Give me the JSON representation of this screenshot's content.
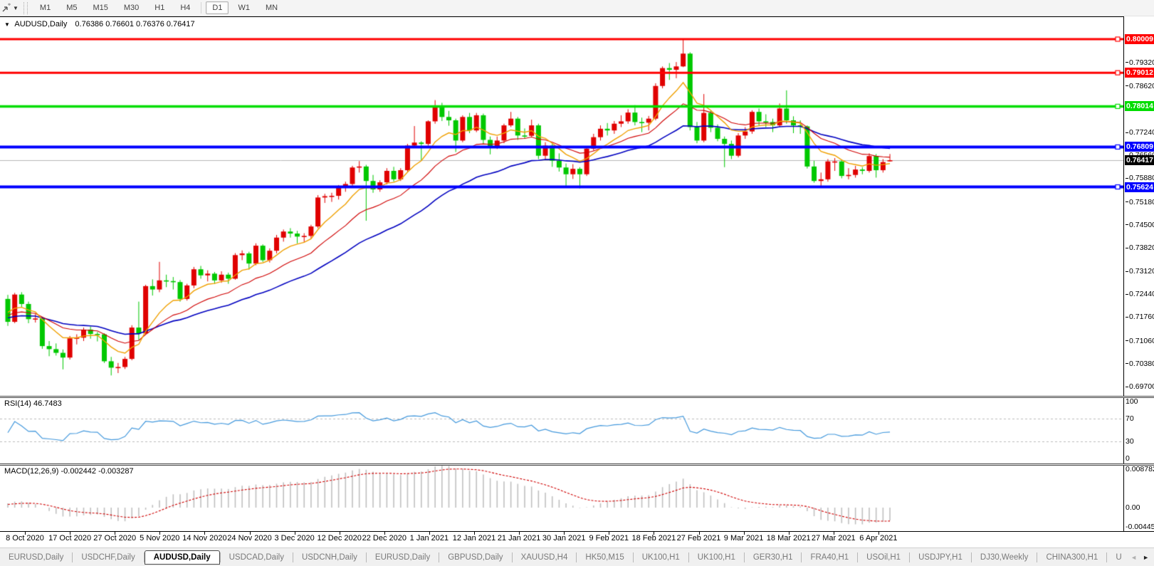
{
  "toolbar": {
    "chart_icon": "chart-cursor-icon",
    "timeframes": [
      "M1",
      "M5",
      "M15",
      "M30",
      "H1",
      "H4",
      "D1",
      "W1",
      "MN"
    ],
    "active_timeframe": "D1"
  },
  "chart_title": {
    "symbol": "AUDUSD,Daily",
    "ohlc": "0.76386 0.76601 0.76376 0.76417"
  },
  "rsi_label": {
    "name": "RSI(14)",
    "value": "46.7483"
  },
  "macd_label": {
    "name": "MACD(12,26,9)",
    "value": "-0.002442 -0.003287"
  },
  "colors": {
    "candle_up": "#e00000",
    "candle_down": "#00c800",
    "ma_fast": "#f0a000",
    "ma_mid": "#d00000",
    "ma_slow": "#0000c0",
    "level_red": "#ff0000",
    "level_green": "#00dd00",
    "level_blue": "#0000ff",
    "current_price_line": "#b8b8b8",
    "current_price_badge": "#000000",
    "rsi_line": "#4499dd",
    "rsi_level_dash": "#bbbbbb",
    "macd_bar": "#c0c0c0",
    "macd_signal": "#d00000"
  },
  "chart_data": {
    "type": "candlestick",
    "symbol": "AUDUSD",
    "timeframe": "Daily",
    "current_bar": {
      "open": 0.76386,
      "high": 0.76601,
      "low": 0.76376,
      "close": 0.76417
    },
    "y_ticks": [
      "0.79320",
      "0.78620",
      "0.77940",
      "0.77240",
      "0.76560",
      "0.75880",
      "0.75180",
      "0.74500",
      "0.73820",
      "0.73120",
      "0.72440",
      "0.71760",
      "0.71060",
      "0.70380",
      "0.69700"
    ],
    "levels": [
      {
        "label": "0.80009",
        "price": 0.80009,
        "color": "#ff0000",
        "width": 3
      },
      {
        "label": "0.79012",
        "price": 0.79012,
        "color": "#ff0000",
        "width": 3
      },
      {
        "label": "0.78014",
        "price": 0.78014,
        "color": "#00dd00",
        "width": 3.5
      },
      {
        "label": "0.76809",
        "price": 0.76809,
        "color": "#0000ff",
        "width": 4
      },
      {
        "label": "0.75624",
        "price": 0.75624,
        "color": "#0000ff",
        "width": 4
      }
    ],
    "current_price": {
      "label": "0.76417",
      "price": 0.76417
    },
    "x_labels": [
      "8 Oct 2020",
      "17 Oct 2020",
      "27 Oct 2020",
      "5 Nov 2020",
      "14 Nov 2020",
      "24 Nov 2020",
      "3 Dec 2020",
      "12 Dec 2020",
      "22 Dec 2020",
      "1 Jan 2021",
      "12 Jan 2021",
      "21 Jan 2021",
      "30 Jan 2021",
      "9 Feb 2021",
      "18 Feb 2021",
      "27 Feb 2021",
      "9 Mar 2021",
      "18 Mar 2021",
      "27 Mar 2021",
      "6 Apr 2021"
    ],
    "candles": [
      [
        0.723,
        0.7242,
        0.715,
        0.7162
      ],
      [
        0.7162,
        0.7248,
        0.7158,
        0.7243
      ],
      [
        0.7243,
        0.725,
        0.7205,
        0.7215
      ],
      [
        0.7215,
        0.7222,
        0.7158,
        0.717
      ],
      [
        0.717,
        0.7185,
        0.716,
        0.7172
      ],
      [
        0.7172,
        0.7176,
        0.7082,
        0.709
      ],
      [
        0.709,
        0.7105,
        0.706,
        0.7081
      ],
      [
        0.7081,
        0.7098,
        0.7062,
        0.707
      ],
      [
        0.707,
        0.708,
        0.7021,
        0.7056
      ],
      [
        0.7056,
        0.712,
        0.705,
        0.7113
      ],
      [
        0.7113,
        0.7125,
        0.7095,
        0.7115
      ],
      [
        0.7115,
        0.7145,
        0.7105,
        0.7139
      ],
      [
        0.7139,
        0.7148,
        0.7112,
        0.7126
      ],
      [
        0.7126,
        0.7132,
        0.7104,
        0.7125
      ],
      [
        0.7125,
        0.7128,
        0.704,
        0.7045
      ],
      [
        0.7045,
        0.7058,
        0.7003,
        0.7026
      ],
      [
        0.7026,
        0.704,
        0.701,
        0.7028
      ],
      [
        0.7028,
        0.7058,
        0.7022,
        0.7052
      ],
      [
        0.7052,
        0.7152,
        0.7048,
        0.7145
      ],
      [
        0.7145,
        0.7222,
        0.7108,
        0.7128
      ],
      [
        0.7128,
        0.7272,
        0.7125,
        0.7268
      ],
      [
        0.7268,
        0.7288,
        0.724,
        0.7258
      ],
      [
        0.7258,
        0.734,
        0.725,
        0.7285
      ],
      [
        0.7285,
        0.7302,
        0.7265,
        0.7283
      ],
      [
        0.7283,
        0.7295,
        0.7258,
        0.728
      ],
      [
        0.728,
        0.7286,
        0.7222,
        0.723
      ],
      [
        0.723,
        0.7275,
        0.7225,
        0.727
      ],
      [
        0.727,
        0.7325,
        0.7262,
        0.7318
      ],
      [
        0.7318,
        0.7328,
        0.729,
        0.73
      ],
      [
        0.73,
        0.7315,
        0.7282,
        0.7305
      ],
      [
        0.7305,
        0.731,
        0.7275,
        0.7285
      ],
      [
        0.7285,
        0.7312,
        0.7278,
        0.7302
      ],
      [
        0.7302,
        0.7308,
        0.7275,
        0.729
      ],
      [
        0.729,
        0.7366,
        0.7287,
        0.736
      ],
      [
        0.736,
        0.7374,
        0.7345,
        0.7365
      ],
      [
        0.7365,
        0.737,
        0.7317,
        0.7335
      ],
      [
        0.7335,
        0.7395,
        0.733,
        0.7388
      ],
      [
        0.7388,
        0.7392,
        0.734,
        0.7345
      ],
      [
        0.7345,
        0.738,
        0.7338,
        0.7373
      ],
      [
        0.7373,
        0.742,
        0.7365,
        0.7412
      ],
      [
        0.7412,
        0.7436,
        0.74,
        0.743
      ],
      [
        0.743,
        0.744,
        0.7412,
        0.7424
      ],
      [
        0.7424,
        0.7432,
        0.7395,
        0.7415
      ],
      [
        0.7415,
        0.7425,
        0.7398,
        0.7417
      ],
      [
        0.7417,
        0.745,
        0.741,
        0.7445
      ],
      [
        0.7445,
        0.7538,
        0.744,
        0.7531
      ],
      [
        0.7531,
        0.7542,
        0.7515,
        0.7535
      ],
      [
        0.7535,
        0.7545,
        0.7518,
        0.7536
      ],
      [
        0.7536,
        0.7568,
        0.7525,
        0.7561
      ],
      [
        0.7561,
        0.7578,
        0.7548,
        0.7571
      ],
      [
        0.7571,
        0.7625,
        0.7565,
        0.762
      ],
      [
        0.762,
        0.7639,
        0.7605,
        0.7623
      ],
      [
        0.7623,
        0.7628,
        0.7462,
        0.758
      ],
      [
        0.758,
        0.7598,
        0.7545,
        0.7555
      ],
      [
        0.7555,
        0.7582,
        0.7548,
        0.7576
      ],
      [
        0.7576,
        0.7618,
        0.757,
        0.761
      ],
      [
        0.761,
        0.7622,
        0.7578,
        0.7585
      ],
      [
        0.7585,
        0.7618,
        0.758,
        0.7612
      ],
      [
        0.7612,
        0.769,
        0.7608,
        0.7685
      ],
      [
        0.7685,
        0.7743,
        0.768,
        0.7694
      ],
      [
        0.7694,
        0.7698,
        0.7642,
        0.769
      ],
      [
        0.769,
        0.776,
        0.7685,
        0.7757
      ],
      [
        0.7757,
        0.782,
        0.775,
        0.78
      ],
      [
        0.78,
        0.7812,
        0.7758,
        0.777
      ],
      [
        0.777,
        0.7788,
        0.7744,
        0.776
      ],
      [
        0.776,
        0.7765,
        0.7666,
        0.77
      ],
      [
        0.77,
        0.7775,
        0.7695,
        0.777
      ],
      [
        0.777,
        0.7782,
        0.7722,
        0.773
      ],
      [
        0.773,
        0.7782,
        0.7725,
        0.7775
      ],
      [
        0.7775,
        0.778,
        0.769,
        0.7702
      ],
      [
        0.7702,
        0.7712,
        0.7659,
        0.768
      ],
      [
        0.768,
        0.7712,
        0.7675,
        0.77
      ],
      [
        0.77,
        0.775,
        0.7692,
        0.7745
      ],
      [
        0.7745,
        0.7785,
        0.774,
        0.7765
      ],
      [
        0.7765,
        0.777,
        0.7702,
        0.7715
      ],
      [
        0.7715,
        0.7736,
        0.7705,
        0.7714
      ],
      [
        0.7714,
        0.7762,
        0.771,
        0.7745
      ],
      [
        0.7745,
        0.775,
        0.7645,
        0.7655
      ],
      [
        0.7655,
        0.7695,
        0.7642,
        0.7685
      ],
      [
        0.7685,
        0.769,
        0.7622,
        0.764
      ],
      [
        0.764,
        0.7662,
        0.7608,
        0.762
      ],
      [
        0.762,
        0.7632,
        0.7565,
        0.76
      ],
      [
        0.76,
        0.763,
        0.7586,
        0.7616
      ],
      [
        0.7616,
        0.7621,
        0.7558,
        0.76
      ],
      [
        0.76,
        0.7682,
        0.7595,
        0.7676
      ],
      [
        0.7676,
        0.772,
        0.767,
        0.771
      ],
      [
        0.771,
        0.7745,
        0.77,
        0.7735
      ],
      [
        0.7735,
        0.7752,
        0.7715,
        0.773
      ],
      [
        0.773,
        0.7758,
        0.772,
        0.775
      ],
      [
        0.775,
        0.7775,
        0.774,
        0.7757
      ],
      [
        0.7757,
        0.7793,
        0.775,
        0.7783
      ],
      [
        0.7783,
        0.7805,
        0.7745,
        0.7755
      ],
      [
        0.7755,
        0.7768,
        0.7725,
        0.7753
      ],
      [
        0.7753,
        0.7773,
        0.773,
        0.7765
      ],
      [
        0.7765,
        0.787,
        0.776,
        0.7862
      ],
      [
        0.7862,
        0.792,
        0.7855,
        0.7915
      ],
      [
        0.7915,
        0.793,
        0.788,
        0.791
      ],
      [
        0.791,
        0.7933,
        0.7885,
        0.792
      ],
      [
        0.792,
        0.8001,
        0.7918,
        0.7958
      ],
      [
        0.7958,
        0.7962,
        0.773,
        0.774
      ],
      [
        0.774,
        0.7755,
        0.7692,
        0.77
      ],
      [
        0.77,
        0.7838,
        0.7695,
        0.7782
      ],
      [
        0.7782,
        0.779,
        0.7725,
        0.7738
      ],
      [
        0.7738,
        0.7748,
        0.7698,
        0.7705
      ],
      [
        0.7705,
        0.7712,
        0.7621,
        0.769
      ],
      [
        0.769,
        0.77,
        0.7645,
        0.7655
      ],
      [
        0.7655,
        0.7722,
        0.765,
        0.7715
      ],
      [
        0.7715,
        0.774,
        0.7705,
        0.7727
      ],
      [
        0.7727,
        0.779,
        0.772,
        0.7785
      ],
      [
        0.7785,
        0.7795,
        0.7745,
        0.7757
      ],
      [
        0.7757,
        0.7778,
        0.774,
        0.7755
      ],
      [
        0.7755,
        0.7765,
        0.7725,
        0.7745
      ],
      [
        0.7745,
        0.781,
        0.774,
        0.7795
      ],
      [
        0.7795,
        0.7849,
        0.775,
        0.776
      ],
      [
        0.776,
        0.7772,
        0.7722,
        0.7745
      ],
      [
        0.7745,
        0.776,
        0.772,
        0.7742
      ],
      [
        0.7742,
        0.7745,
        0.7617,
        0.7623
      ],
      [
        0.7623,
        0.764,
        0.7575,
        0.758
      ],
      [
        0.758,
        0.7605,
        0.7564,
        0.7585
      ],
      [
        0.7585,
        0.7645,
        0.7578,
        0.7638
      ],
      [
        0.7638,
        0.7648,
        0.761,
        0.7638
      ],
      [
        0.7638,
        0.7642,
        0.7588,
        0.7595
      ],
      [
        0.7595,
        0.7618,
        0.7585,
        0.7598
      ],
      [
        0.7598,
        0.7625,
        0.759,
        0.7614
      ],
      [
        0.7614,
        0.7621,
        0.76,
        0.761
      ],
      [
        0.761,
        0.7662,
        0.7605,
        0.7654
      ],
      [
        0.7654,
        0.766,
        0.759,
        0.7612
      ],
      [
        0.7612,
        0.7645,
        0.7605,
        0.7636
      ],
      [
        0.76386,
        0.76601,
        0.76376,
        0.76417
      ]
    ],
    "moving_averages": [
      {
        "name": "ma-fast",
        "period": 8,
        "color": "#f0a000"
      },
      {
        "name": "ma-mid",
        "period": 17,
        "color": "#d00000"
      },
      {
        "name": "ma-slow",
        "period": 34,
        "color": "#0000c0"
      }
    ],
    "sub_indicators": [
      {
        "name": "RSI",
        "period": 14,
        "current": 46.7483,
        "range": [
          0,
          100
        ],
        "levels": [
          70,
          30
        ],
        "scale_labels": [
          "100",
          "70",
          "30",
          "0"
        ],
        "legend_position": "top-left"
      },
      {
        "name": "MACD",
        "params": [
          12,
          26,
          9
        ],
        "current": [
          -0.002442,
          -0.003287
        ],
        "scale_labels": [
          "0.008782",
          "0.00",
          "-0.004453"
        ],
        "legend_position": "top-left"
      }
    ]
  },
  "tabs": {
    "items": [
      "EURUSD,Daily",
      "USDCHF,Daily",
      "AUDUSD,Daily",
      "USDCAD,Daily",
      "USDCNH,Daily",
      "EURUSD,Daily",
      "GBPUSD,Daily",
      "XAUUSD,H4",
      "HK50,M15",
      "UK100,H1",
      "UK100,H1",
      "GER30,H1",
      "FRA40,H1",
      "USOil,H1",
      "USDJPY,H1",
      "DJ30,Weekly",
      "CHINA300,H1",
      "U"
    ],
    "active_index": 2,
    "scroll_left_enabled": false,
    "scroll_right_enabled": true
  }
}
